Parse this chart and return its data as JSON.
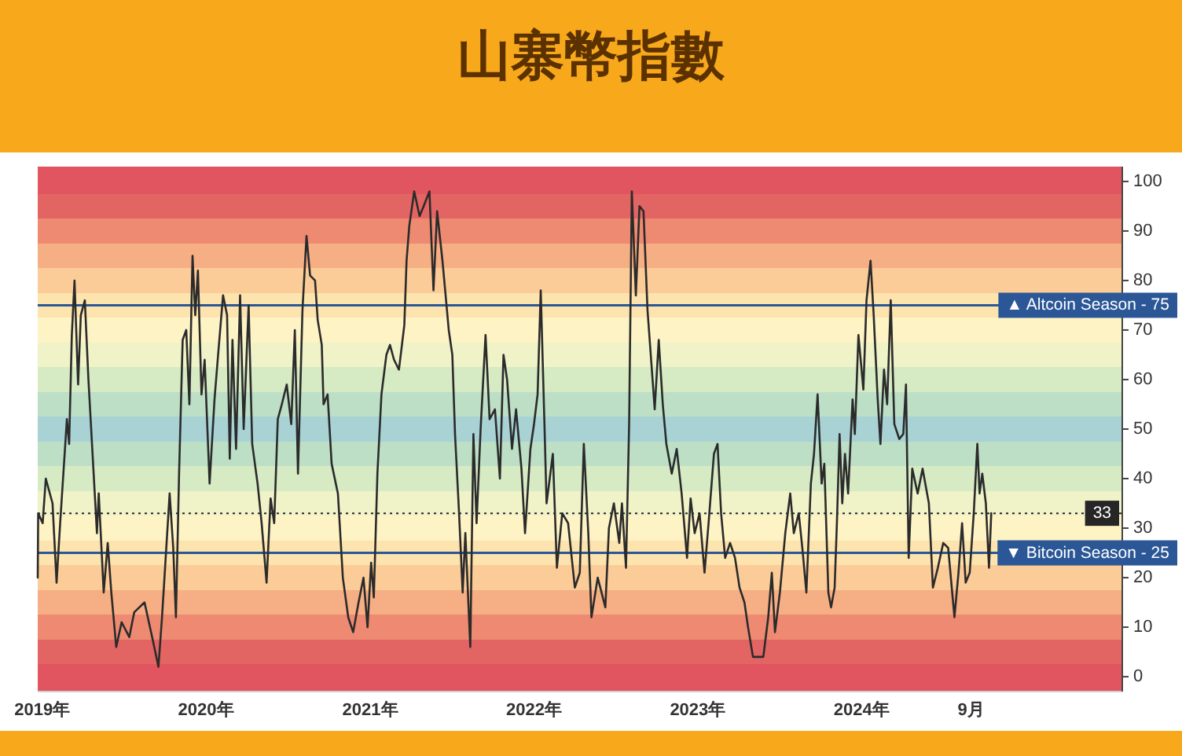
{
  "chart_data": {
    "type": "line",
    "title": "山寨幣指數",
    "x": [
      "2018-12-22",
      "2018-12-23",
      "2019-01-02",
      "2019-01-09",
      "2019-01-24",
      "2019-02-02",
      "2019-02-10",
      "2019-02-25",
      "2019-03-02",
      "2019-03-08",
      "2019-03-14",
      "2019-03-22",
      "2019-03-28",
      "2019-04-06",
      "2019-04-14",
      "2019-04-25",
      "2019-05-03",
      "2019-05-07",
      "2019-05-18",
      "2019-05-27",
      "2019-06-04",
      "2019-06-15",
      "2019-06-27",
      "2019-07-14",
      "2019-07-25",
      "2019-08-17",
      "2019-09-03",
      "2019-09-17",
      "2019-09-25",
      "2019-10-12",
      "2019-10-20",
      "2019-10-26",
      "2019-11-02",
      "2019-11-10",
      "2019-11-18",
      "2019-11-25",
      "2019-12-02",
      "2019-12-08",
      "2019-12-14",
      "2019-12-22",
      "2019-12-29",
      "2020-01-09",
      "2020-01-20",
      "2020-01-28",
      "2020-02-08",
      "2020-02-17",
      "2020-02-23",
      "2020-02-29",
      "2020-03-08",
      "2020-03-17",
      "2020-03-25",
      "2020-04-05",
      "2020-04-13",
      "2020-04-25",
      "2020-05-04",
      "2020-05-15",
      "2020-05-24",
      "2020-06-01",
      "2020-06-09",
      "2020-06-18",
      "2020-06-29",
      "2020-07-09",
      "2020-07-17",
      "2020-07-24",
      "2020-08-03",
      "2020-08-12",
      "2020-08-20",
      "2020-08-31",
      "2020-09-06",
      "2020-09-15",
      "2020-09-19",
      "2020-09-28",
      "2020-10-07",
      "2020-10-21",
      "2020-11-01",
      "2020-11-13",
      "2020-11-24",
      "2020-12-06",
      "2020-12-17",
      "2020-12-26",
      "2021-01-03",
      "2021-01-09",
      "2021-01-17",
      "2021-01-26",
      "2021-02-06",
      "2021-02-14",
      "2021-02-23",
      "2021-03-06",
      "2021-03-18",
      "2021-03-23",
      "2021-03-29",
      "2021-04-09",
      "2021-04-21",
      "2021-04-30",
      "2021-05-13",
      "2021-05-22",
      "2021-05-30",
      "2021-06-11",
      "2021-06-16",
      "2021-06-25",
      "2021-07-03",
      "2021-07-09",
      "2021-07-18",
      "2021-07-26",
      "2021-08-01",
      "2021-08-12",
      "2021-08-19",
      "2021-08-26",
      "2021-09-04",
      "2021-09-15",
      "2021-09-24",
      "2021-10-06",
      "2021-10-17",
      "2021-10-25",
      "2021-11-02",
      "2021-11-13",
      "2021-11-22",
      "2021-12-04",
      "2021-12-12",
      "2021-12-24",
      "2022-01-01",
      "2022-01-09",
      "2022-01-16",
      "2022-01-24",
      "2022-01-29",
      "2022-02-12",
      "2022-02-21",
      "2022-03-05",
      "2022-03-18",
      "2022-04-02",
      "2022-04-13",
      "2022-04-22",
      "2022-05-02",
      "2022-05-09",
      "2022-05-23",
      "2022-06-09",
      "2022-06-17",
      "2022-06-28",
      "2022-07-10",
      "2022-07-16",
      "2022-07-25",
      "2022-08-01",
      "2022-08-07",
      "2022-08-16",
      "2022-08-24",
      "2022-09-02",
      "2022-09-11",
      "2022-09-19",
      "2022-09-27",
      "2022-10-06",
      "2022-10-15",
      "2022-10-23",
      "2022-11-04",
      "2022-11-15",
      "2022-11-26",
      "2022-12-08",
      "2022-12-16",
      "2022-12-25",
      "2023-01-05",
      "2023-01-16",
      "2023-01-25",
      "2023-02-06",
      "2023-02-14",
      "2023-02-22",
      "2023-03-03",
      "2023-03-14",
      "2023-03-25",
      "2023-04-04",
      "2023-04-15",
      "2023-04-23",
      "2023-05-04",
      "2023-05-27",
      "2023-06-07",
      "2023-06-15",
      "2023-06-22",
      "2023-07-03",
      "2023-07-15",
      "2023-07-26",
      "2023-08-03",
      "2023-08-14",
      "2023-08-22",
      "2023-08-31",
      "2023-09-10",
      "2023-09-17",
      "2023-09-25",
      "2023-10-04",
      "2023-10-10",
      "2023-10-19",
      "2023-10-25",
      "2023-11-02",
      "2023-11-07",
      "2023-11-13",
      "2023-11-19",
      "2023-11-25",
      "2023-12-02",
      "2023-12-12",
      "2023-12-17",
      "2023-12-25",
      "2024-01-05",
      "2024-01-12",
      "2024-01-21",
      "2024-01-28",
      "2024-02-06",
      "2024-02-12",
      "2024-02-20",
      "2024-02-27",
      "2024-03-06",
      "2024-03-14",
      "2024-03-25",
      "2024-04-03",
      "2024-04-09",
      "2024-04-15",
      "2024-04-23",
      "2024-05-05",
      "2024-05-16",
      "2024-05-30",
      "2024-06-08",
      "2024-06-19",
      "2024-07-01",
      "2024-07-12",
      "2024-07-26",
      "2024-08-04",
      "2024-08-12",
      "2024-08-20",
      "2024-08-29",
      "2024-09-07",
      "2024-09-15",
      "2024-09-20",
      "2024-09-26",
      "2024-10-04",
      "2024-10-11",
      "2024-10-16"
    ],
    "series": [
      {
        "color": "#2b2b2b",
        "values": [
          20,
          33,
          31,
          40,
          35,
          19,
          31,
          52,
          47,
          69,
          80,
          59,
          73,
          76,
          60,
          42,
          29,
          37,
          17,
          27,
          17,
          6,
          11,
          8,
          13,
          15,
          8,
          2,
          12,
          37,
          26,
          12,
          41,
          68,
          70,
          55,
          85,
          73,
          82,
          57,
          64,
          39,
          56,
          65,
          77,
          73,
          44,
          68,
          46,
          77,
          50,
          75,
          47,
          39,
          31,
          19,
          36,
          31,
          52,
          55,
          59,
          51,
          70,
          41,
          74,
          89,
          81,
          80,
          72,
          67,
          55,
          57,
          43,
          37,
          20,
          12,
          9,
          15,
          20,
          10,
          23,
          16,
          41,
          57,
          65,
          67,
          64,
          62,
          71,
          84,
          91,
          98,
          93,
          95,
          98,
          78,
          94,
          84,
          79,
          70,
          65,
          49,
          33,
          17,
          29,
          6,
          49,
          31,
          50,
          69,
          52,
          54,
          40,
          65,
          60,
          46,
          54,
          42,
          29,
          46,
          51,
          57,
          78,
          52,
          35,
          45,
          22,
          33,
          31,
          18,
          21,
          47,
          29,
          12,
          20,
          14,
          30,
          35,
          27,
          35,
          22,
          51,
          98,
          77,
          95,
          94,
          74,
          64,
          54,
          68,
          55,
          47,
          41,
          46,
          37,
          24,
          36,
          29,
          33,
          21,
          31,
          45,
          47,
          33,
          24,
          27,
          24,
          18,
          15,
          10,
          4,
          4,
          12,
          21,
          9,
          17,
          29,
          37,
          29,
          33,
          26,
          17,
          39,
          45,
          57,
          39,
          43,
          17,
          14,
          18,
          31,
          49,
          35,
          45,
          37,
          56,
          49,
          69,
          58,
          76,
          84,
          73,
          56,
          47,
          62,
          55,
          76,
          51,
          48,
          49,
          59,
          24,
          42,
          37,
          42,
          35,
          18,
          22,
          27,
          26,
          12,
          21,
          31,
          19,
          21,
          33,
          47,
          37,
          41,
          35,
          22,
          33
        ]
      }
    ],
    "xlim": [
      "2018-12-22",
      "2025-08-04"
    ],
    "ylim": [
      -3,
      103
    ],
    "xticks": [
      {
        "value": "2019-01-01",
        "label": "2019年"
      },
      {
        "value": "2020-01-01",
        "label": "2020年"
      },
      {
        "value": "2021-01-01",
        "label": "2021年"
      },
      {
        "value": "2022-01-01",
        "label": "2022年"
      },
      {
        "value": "2023-01-01",
        "label": "2023年"
      },
      {
        "value": "2024-01-01",
        "label": "2024年"
      },
      {
        "value": "2024-09-01",
        "label": "9月"
      }
    ],
    "yticks": [
      0,
      10,
      20,
      30,
      40,
      50,
      60,
      70,
      80,
      90,
      100
    ],
    "ref_lines": [
      {
        "axis": "y",
        "value": 75,
        "label": "▲ Altcoin Season - 75",
        "color": "#2b5797"
      },
      {
        "axis": "y",
        "value": 25,
        "label": "▼ Bitcoin Season - 25",
        "color": "#2b5797"
      },
      {
        "axis": "y",
        "value": 33,
        "label": "33",
        "color": "#262626",
        "line_style": "dotted"
      }
    ],
    "bands": [
      {
        "axis": "y",
        "from": -3,
        "to": 2.5,
        "color": "#e05560"
      },
      {
        "axis": "y",
        "from": 2.5,
        "to": 7.5,
        "color": "#e36563"
      },
      {
        "axis": "y",
        "from": 7.5,
        "to": 12.5,
        "color": "#ee8a72"
      },
      {
        "axis": "y",
        "from": 12.5,
        "to": 17.5,
        "color": "#f6ae84"
      },
      {
        "axis": "y",
        "from": 17.5,
        "to": 22.5,
        "color": "#fbcc98"
      },
      {
        "axis": "y",
        "from": 22.5,
        "to": 27.5,
        "color": "#fde3ad"
      },
      {
        "axis": "y",
        "from": 27.5,
        "to": 32.5,
        "color": "#fdf3c4"
      },
      {
        "axis": "y",
        "from": 32.5,
        "to": 37.5,
        "color": "#f0f3c8"
      },
      {
        "axis": "y",
        "from": 37.5,
        "to": 42.5,
        "color": "#d6eac4"
      },
      {
        "axis": "y",
        "from": 42.5,
        "to": 47.5,
        "color": "#bcdfc6"
      },
      {
        "axis": "y",
        "from": 47.5,
        "to": 52.5,
        "color": "#a8d2d4"
      },
      {
        "axis": "y",
        "from": 52.5,
        "to": 57.5,
        "color": "#bcdfc6"
      },
      {
        "axis": "y",
        "from": 57.5,
        "to": 62.5,
        "color": "#d6eac4"
      },
      {
        "axis": "y",
        "from": 62.5,
        "to": 67.5,
        "color": "#f0f3c8"
      },
      {
        "axis": "y",
        "from": 67.5,
        "to": 72.5,
        "color": "#fdf3c4"
      },
      {
        "axis": "y",
        "from": 72.5,
        "to": 77.5,
        "color": "#fde3ad"
      },
      {
        "axis": "y",
        "from": 77.5,
        "to": 82.5,
        "color": "#fbcc98"
      },
      {
        "axis": "y",
        "from": 82.5,
        "to": 87.5,
        "color": "#f6ae84"
      },
      {
        "axis": "y",
        "from": 87.5,
        "to": 92.5,
        "color": "#ee8a72"
      },
      {
        "axis": "y",
        "from": 92.5,
        "to": 97.5,
        "color": "#e36563"
      },
      {
        "axis": "y",
        "from": 97.5,
        "to": 103,
        "color": "#e05560"
      }
    ]
  }
}
